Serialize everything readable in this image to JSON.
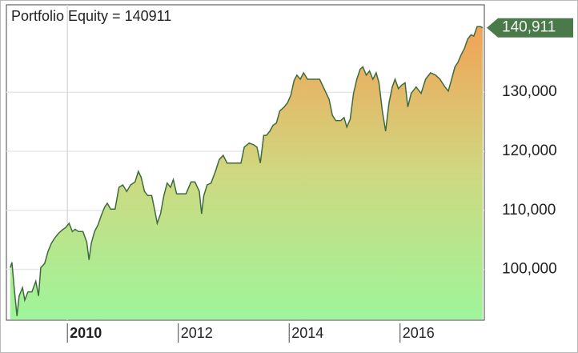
{
  "chart_data": {
    "type": "area",
    "title": "Portfolio Equity = 140911",
    "series": [
      {
        "color": "#3d6b3d",
        "x": [
          2008.97,
          2009.0,
          2009.04,
          2009.09,
          2009.13,
          2009.19,
          2009.23,
          2009.29,
          2009.36,
          2009.43,
          2009.48,
          2009.52,
          2009.59,
          2009.65,
          2009.71,
          2009.77,
          2009.84,
          2009.91,
          2009.97,
          2010.03,
          2010.09,
          2010.14,
          2010.2,
          2010.28,
          2010.35,
          2010.39,
          2010.43,
          2010.49,
          2010.55,
          2010.61,
          2010.67,
          2010.72,
          2010.78,
          2010.86,
          2010.93,
          2011.0,
          2011.07,
          2011.14,
          2011.22,
          2011.28,
          2011.33,
          2011.39,
          2011.45,
          2011.52,
          2011.58,
          2011.62,
          2011.68,
          2011.74,
          2011.8,
          2011.86,
          2011.91,
          2011.97,
          2012.06,
          2012.14,
          2012.23,
          2012.3,
          2012.38,
          2012.42,
          2012.46,
          2012.52,
          2012.59,
          2012.67,
          2012.74,
          2012.81,
          2012.88,
          2012.96,
          2013.04,
          2013.13,
          2013.19,
          2013.28,
          2013.36,
          2013.42,
          2013.48,
          2013.54,
          2013.59,
          2013.65,
          2013.71,
          2013.77,
          2013.83,
          2013.91,
          2013.97,
          2014.03,
          2014.09,
          2014.14,
          2014.2,
          2014.26,
          2014.33,
          2014.43,
          2014.55,
          2014.67,
          2014.72,
          2014.78,
          2014.84,
          2014.93,
          2014.99,
          2015.04,
          2015.1,
          2015.16,
          2015.22,
          2015.28,
          2015.33,
          2015.39,
          2015.45,
          2015.51,
          2015.57,
          2015.62,
          2015.68,
          2015.74,
          2015.8,
          2015.86,
          2015.91,
          2015.97,
          2016.03,
          2016.09,
          2016.14,
          2016.2,
          2016.29,
          2016.38,
          2016.46,
          2016.55,
          2016.64,
          2016.72,
          2016.81,
          2016.87,
          2016.93,
          2016.99,
          2017.04,
          2017.1,
          2017.16,
          2017.22,
          2017.28,
          2017.33,
          2017.39,
          2017.45,
          2017.49
        ],
        "values": [
          100300,
          101200,
          96900,
          92100,
          95500,
          96900,
          94800,
          96200,
          96200,
          98000,
          95500,
          100300,
          101000,
          103000,
          104400,
          105300,
          106100,
          106700,
          107100,
          107800,
          106400,
          106800,
          106400,
          106400,
          104600,
          101600,
          104400,
          106400,
          107500,
          109100,
          110500,
          111200,
          110200,
          110200,
          113900,
          114300,
          113200,
          114300,
          114800,
          116600,
          115600,
          113200,
          112500,
          112500,
          109800,
          107800,
          109400,
          112500,
          114600,
          113900,
          115200,
          112800,
          112800,
          112800,
          114800,
          114800,
          113200,
          109400,
          112500,
          114300,
          114600,
          116600,
          118600,
          119300,
          118000,
          118000,
          118000,
          118000,
          120700,
          121400,
          121100,
          120700,
          118000,
          122700,
          122700,
          123400,
          124400,
          124800,
          126800,
          127500,
          128200,
          129500,
          132000,
          132900,
          132200,
          133300,
          132200,
          132200,
          132200,
          129800,
          128800,
          126100,
          125200,
          125200,
          125700,
          124100,
          125400,
          129800,
          132200,
          133900,
          134300,
          132900,
          133600,
          132200,
          133300,
          131600,
          126800,
          123400,
          128200,
          130900,
          132200,
          130600,
          131200,
          131600,
          127500,
          129800,
          130900,
          129800,
          132200,
          133300,
          132900,
          132200,
          130900,
          130200,
          132200,
          134300,
          135000,
          136300,
          137400,
          139000,
          139700,
          139500,
          141100,
          141100,
          140911
        ],
        "value_labels": [
          null,
          null,
          null,
          null,
          null,
          null,
          null,
          null,
          null,
          null,
          null,
          null,
          null,
          null,
          null,
          null,
          null,
          null,
          null,
          null,
          null,
          null,
          null,
          null,
          null,
          null,
          null,
          null,
          null,
          null,
          null,
          null,
          null,
          null,
          null,
          null,
          null,
          null,
          null,
          null,
          null,
          null,
          null,
          null,
          null,
          null,
          null,
          null,
          null,
          null,
          null,
          null,
          null,
          null,
          null,
          null,
          null,
          null,
          null,
          null,
          null,
          null,
          null,
          null,
          null,
          null,
          null,
          null,
          null,
          null,
          null,
          null,
          null,
          null,
          null,
          null,
          null,
          null,
          null,
          null,
          null,
          null,
          null,
          null,
          null,
          null,
          null,
          null,
          null,
          null,
          null,
          null,
          null,
          null,
          null,
          null,
          null,
          null,
          null,
          null,
          null,
          null,
          null,
          null,
          null,
          null,
          null,
          null,
          null,
          null,
          null,
          null,
          null,
          null,
          null,
          null,
          null,
          null,
          null,
          null,
          null,
          null,
          null,
          null,
          null,
          null,
          null,
          null,
          null,
          null,
          null,
          null,
          null,
          null,
          "140,911"
        ]
      }
    ],
    "xlim": [
      2008.9,
      2017.52
    ],
    "xticks": [
      2010,
      2012,
      2014,
      2016
    ],
    "ylim": [
      91400,
      144800
    ],
    "yticks": [
      {
        "value": 100000,
        "label": "100,000"
      },
      {
        "value": 110000,
        "label": "110,000"
      },
      {
        "value": 120000,
        "label": "120,000"
      },
      {
        "value": 130000,
        "label": "130,000"
      }
    ],
    "grid": true
  }
}
